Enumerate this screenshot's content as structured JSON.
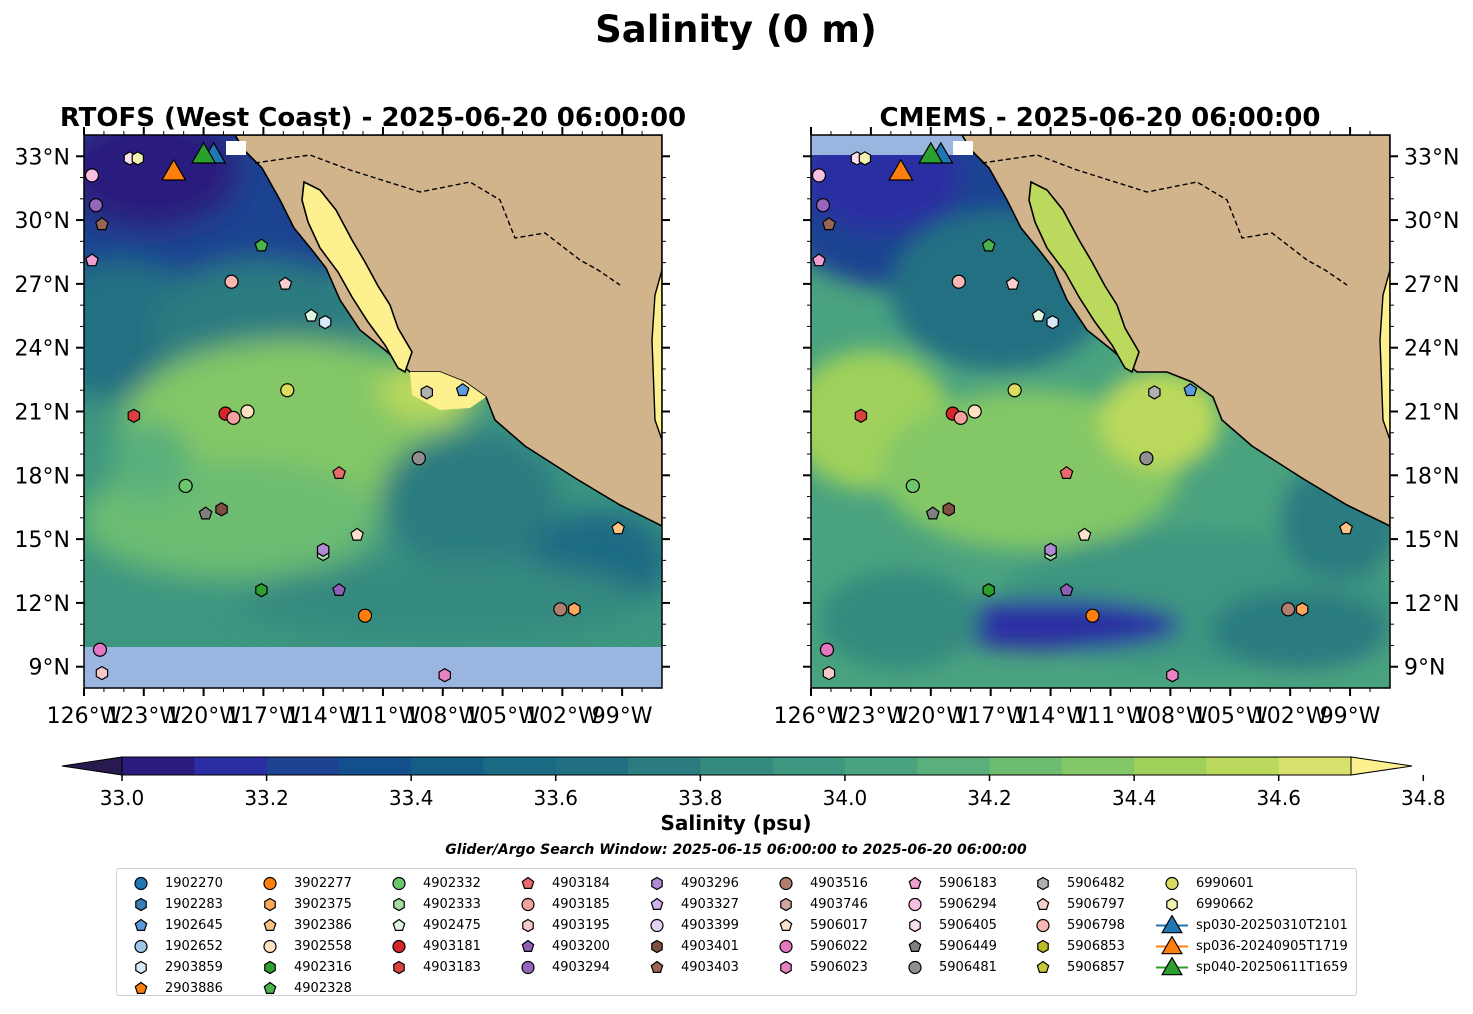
{
  "figure": {
    "suptitle": "Salinity (0 m)",
    "colorbar_label": "Salinity (psu)",
    "search_window": "Glider/Argo Search Window: 2025-06-15 06:00:00 to 2025-06-20 06:00:00"
  },
  "colors": {
    "land": "#d2b48c",
    "ocean_nodata": "#9ab6e0",
    "colormap": [
      "#281a4e",
      "#2a1c7e",
      "#2b2ea3",
      "#1e4292",
      "#134f8c",
      "#145e86",
      "#1a6a84",
      "#216f82",
      "#2b7c80",
      "#348a7f",
      "#3d9680",
      "#4aa37f",
      "#59b07a",
      "#6cbc72",
      "#84c766",
      "#9fd15b",
      "#bbd95c",
      "#d7e16e",
      "#fdf08e"
    ]
  },
  "chart_data": [
    {
      "type": "heatmap",
      "title": "RTOFS (West Coast) - 2025-06-20 06:00:00",
      "x_ticks": [
        "126°W",
        "123°W",
        "120°W",
        "117°W",
        "114°W",
        "111°W",
        "108°W",
        "105°W",
        "102°W",
        "99°W"
      ],
      "y_ticks": [
        "33°N",
        "30°N",
        "27°N",
        "24°N",
        "21°N",
        "18°N",
        "15°N",
        "12°N",
        "9°N"
      ],
      "xlim": [
        -126,
        -97
      ],
      "ylim": [
        8,
        34
      ],
      "y_axis_side": "left",
      "no_data_below_lat": 10,
      "field_description_values": {
        "north_fresh_psu": 33.3,
        "central_psu": 34.3,
        "gulf_psu": 34.9,
        "south_psu": 33.8
      }
    },
    {
      "type": "heatmap",
      "title": "CMEMS - 2025-06-20 06:00:00",
      "x_ticks": [
        "126°W",
        "123°W",
        "120°W",
        "117°W",
        "114°W",
        "111°W",
        "108°W",
        "105°W",
        "102°W",
        "99°W"
      ],
      "y_ticks": [
        "33°N",
        "30°N",
        "27°N",
        "24°N",
        "21°N",
        "18°N",
        "15°N",
        "12°N",
        "9°N"
      ],
      "xlim": [
        -126,
        -97
      ],
      "ylim": [
        8,
        34
      ],
      "y_axis_side": "right",
      "field_description_values": {
        "north_fresh_psu": 33.2,
        "central_psu": 34.5,
        "gulf_psu": 34.8,
        "south_psu": 33.2
      }
    },
    {
      "type": "colorbar",
      "label": "Salinity (psu)",
      "range": [
        32.9,
        34.9
      ],
      "step": 0.1,
      "ticks": [
        "33.0",
        "33.2",
        "33.4",
        "33.6",
        "33.8",
        "34.0",
        "34.2",
        "34.4",
        "34.6",
        "34.8"
      ],
      "extend": "both"
    }
  ],
  "floats": [
    {
      "id": "1902270",
      "marker": "circle",
      "color": "#1f77b4",
      "lon": null,
      "lat": null
    },
    {
      "id": "1902283",
      "marker": "hexagon",
      "color": "#3a7fb5",
      "lon": null,
      "lat": null
    },
    {
      "id": "1902645",
      "marker": "pentagon",
      "color": "#5a9be0",
      "lon": -107,
      "lat": 22
    },
    {
      "id": "1902652",
      "marker": "circle",
      "color": "#9ec6ea",
      "lon": null,
      "lat": null
    },
    {
      "id": "2903859",
      "marker": "hexagon",
      "color": "#d6ebf7",
      "lon": -113.9,
      "lat": 25.2
    },
    {
      "id": "2903886",
      "marker": "pentagon",
      "color": "#ff7f0e",
      "lon": null,
      "lat": null
    },
    {
      "id": "3902277",
      "marker": "circle",
      "color": "#ff7f0e",
      "lon": -111.9,
      "lat": 11.4
    },
    {
      "id": "3902375",
      "marker": "hexagon",
      "color": "#ffa75a",
      "lon": -101.4,
      "lat": 11.7
    },
    {
      "id": "3902386",
      "marker": "pentagon",
      "color": "#ffc285",
      "lon": -99.2,
      "lat": 15.5
    },
    {
      "id": "3902558",
      "marker": "circle",
      "color": "#ffe1c2",
      "lon": -117.8,
      "lat": 21
    },
    {
      "id": "4902316",
      "marker": "hexagon",
      "color": "#2ca02c",
      "lon": -117.1,
      "lat": 12.6
    },
    {
      "id": "4902328",
      "marker": "pentagon",
      "color": "#4cb34c",
      "lon": -117.1,
      "lat": 28.8
    },
    {
      "id": "4902332",
      "marker": "circle",
      "color": "#6cc66c",
      "lon": -120.9,
      "lat": 17.5
    },
    {
      "id": "4902333",
      "marker": "hexagon",
      "color": "#a4dea4",
      "lon": -114,
      "lat": 14.3
    },
    {
      "id": "4902475",
      "marker": "pentagon",
      "color": "#e0f5e0",
      "lon": -114.6,
      "lat": 25.5
    },
    {
      "id": "4903181",
      "marker": "circle",
      "color": "#d62728",
      "lon": -118.9,
      "lat": 20.9
    },
    {
      "id": "4903183",
      "marker": "hexagon",
      "color": "#d94040",
      "lon": -123.5,
      "lat": 20.8
    },
    {
      "id": "4903184",
      "marker": "pentagon",
      "color": "#e86a6b",
      "lon": -113.2,
      "lat": 18.1
    },
    {
      "id": "4903185",
      "marker": "circle",
      "color": "#f4a09e",
      "lon": -118.5,
      "lat": 20.7
    },
    {
      "id": "4903195",
      "marker": "hexagon",
      "color": "#f7c8c8",
      "lon": -125.1,
      "lat": 8.7
    },
    {
      "id": "4903200",
      "marker": "pentagon",
      "color": "#8e5fb5",
      "lon": -113.2,
      "lat": 12.6
    },
    {
      "id": "4903294",
      "marker": "circle",
      "color": "#9467bd",
      "lon": -125.4,
      "lat": 30.7
    },
    {
      "id": "4903296",
      "marker": "hexagon",
      "color": "#b08ad3",
      "lon": -114,
      "lat": 14.5
    },
    {
      "id": "4903327",
      "marker": "pentagon",
      "color": "#cfb2ec",
      "lon": null,
      "lat": null
    },
    {
      "id": "4903399",
      "marker": "circle",
      "color": "#e2d0f4",
      "lon": null,
      "lat": null
    },
    {
      "id": "4903401",
      "marker": "hexagon",
      "color": "#7f5040",
      "lon": -119.1,
      "lat": 16.4
    },
    {
      "id": "4903403",
      "marker": "pentagon",
      "color": "#996655",
      "lon": -125.1,
      "lat": 29.8
    },
    {
      "id": "4903516",
      "marker": "circle",
      "color": "#b07f6e",
      "lon": -102.1,
      "lat": 11.7
    },
    {
      "id": "4903746",
      "marker": "hexagon",
      "color": "#d1a79c",
      "lon": null,
      "lat": null
    },
    {
      "id": "5906017",
      "marker": "pentagon",
      "color": "#fde2cf",
      "lon": -112.3,
      "lat": 15.2
    },
    {
      "id": "5906022",
      "marker": "circle",
      "color": "#e377c2",
      "lon": -125.2,
      "lat": 9.8
    },
    {
      "id": "5906023",
      "marker": "hexagon",
      "color": "#e883c4",
      "lon": -107.9,
      "lat": 8.6
    },
    {
      "id": "5906183",
      "marker": "pentagon",
      "color": "#ef9fd3",
      "lon": -125.6,
      "lat": 28.1
    },
    {
      "id": "5906294",
      "marker": "circle",
      "color": "#f7c0e1",
      "lon": -125.6,
      "lat": 32.1
    },
    {
      "id": "5906405",
      "marker": "hexagon",
      "color": "#fbdfee",
      "lon": -123.7,
      "lat": 32.9
    },
    {
      "id": "5906449",
      "marker": "pentagon",
      "color": "#7f7f7f",
      "lon": -119.9,
      "lat": 16.2
    },
    {
      "id": "5906481",
      "marker": "circle",
      "color": "#909090",
      "lon": -109.2,
      "lat": 18.8
    },
    {
      "id": "5906482",
      "marker": "hexagon",
      "color": "#b0b0b0",
      "lon": -108.8,
      "lat": 21.9
    },
    {
      "id": "5906797",
      "marker": "pentagon",
      "color": "#f8cfcf",
      "lon": -115.9,
      "lat": 27
    },
    {
      "id": "5906798",
      "marker": "circle",
      "color": "#f9b7b3",
      "lon": -118.6,
      "lat": 27.1
    },
    {
      "id": "5906853",
      "marker": "hexagon",
      "color": "#bcbd22",
      "lon": null,
      "lat": null
    },
    {
      "id": "5906857",
      "marker": "pentagon",
      "color": "#c7c93a",
      "lon": null,
      "lat": null
    },
    {
      "id": "6990601",
      "marker": "circle",
      "color": "#dbdb5f",
      "lon": -115.8,
      "lat": 22
    },
    {
      "id": "6990662",
      "marker": "hexagon",
      "color": "#f2f2b0",
      "lon": -123.3,
      "lat": 32.9
    }
  ],
  "gliders": [
    {
      "id": "sp030-20250310T2101",
      "marker": "triangle",
      "color": "#1f77b4",
      "lon": -119.5,
      "lat": 33
    },
    {
      "id": "sp036-20240905T1719",
      "marker": "triangle",
      "color": "#ff7f0e",
      "lon": -121.5,
      "lat": 32.2
    },
    {
      "id": "sp040-20250611T1659",
      "marker": "triangle",
      "color": "#2ca02c",
      "lon": -120,
      "lat": 33
    }
  ]
}
